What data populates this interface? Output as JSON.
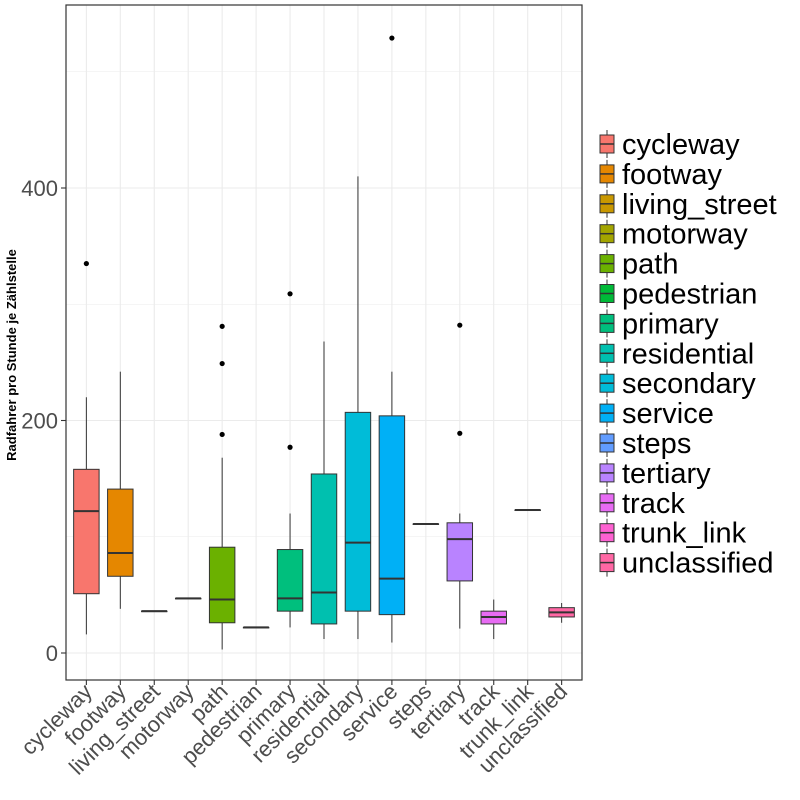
{
  "chart_data": {
    "type": "boxplot",
    "ylabel": "Radfahrer pro Stunde je Zählstelle",
    "xlabel": "",
    "ylim": [
      -22,
      555
    ],
    "yticks": [
      0,
      200,
      400
    ],
    "grid": true,
    "legend_position": "right",
    "categories": [
      "cycleway",
      "footway",
      "living_street",
      "motorway",
      "path",
      "pedestrian",
      "primary",
      "residential",
      "secondary",
      "service",
      "steps",
      "tertiary",
      "track",
      "trunk_link",
      "unclassified"
    ],
    "series": [
      {
        "name": "cycleway",
        "color": "#F8766D",
        "min": 16,
        "q1": 51,
        "median": 122,
        "q3": 158,
        "max": 220,
        "outliers": [
          335
        ]
      },
      {
        "name": "footway",
        "color": "#E58700",
        "min": 38,
        "q1": 66,
        "median": 86,
        "q3": 141,
        "max": 242,
        "outliers": []
      },
      {
        "name": "living_street",
        "color": "#C99800",
        "min": 36,
        "q1": 36,
        "median": 36,
        "q3": 36,
        "max": 36,
        "outliers": []
      },
      {
        "name": "motorway",
        "color": "#A3A500",
        "min": 47,
        "q1": 47,
        "median": 47,
        "q3": 47,
        "max": 47,
        "outliers": []
      },
      {
        "name": "path",
        "color": "#6BB100",
        "min": 3,
        "q1": 26,
        "median": 46,
        "q3": 91,
        "max": 168,
        "outliers": [
          188,
          249,
          281
        ]
      },
      {
        "name": "pedestrian",
        "color": "#00BA38",
        "min": 22,
        "q1": 22,
        "median": 22,
        "q3": 22,
        "max": 22,
        "outliers": []
      },
      {
        "name": "primary",
        "color": "#00BF7D",
        "min": 22,
        "q1": 36,
        "median": 47,
        "q3": 89,
        "max": 120,
        "outliers": [
          177,
          309
        ]
      },
      {
        "name": "residential",
        "color": "#00C0AF",
        "min": 12,
        "q1": 25,
        "median": 52,
        "q3": 154,
        "max": 268,
        "outliers": []
      },
      {
        "name": "secondary",
        "color": "#00BCD8",
        "min": 12,
        "q1": 36,
        "median": 95,
        "q3": 207,
        "max": 410,
        "outliers": []
      },
      {
        "name": "service",
        "color": "#00B0F6",
        "min": 9,
        "q1": 33,
        "median": 64,
        "q3": 204,
        "max": 242,
        "outliers": [
          529
        ]
      },
      {
        "name": "steps",
        "color": "#619CFF",
        "min": 111,
        "q1": 111,
        "median": 111,
        "q3": 111,
        "max": 111,
        "outliers": []
      },
      {
        "name": "tertiary",
        "color": "#B983FF",
        "min": 21,
        "q1": 62,
        "median": 98,
        "q3": 112,
        "max": 120,
        "outliers": [
          189,
          282
        ]
      },
      {
        "name": "track",
        "color": "#E76BF3",
        "min": 12,
        "q1": 25,
        "median": 31,
        "q3": 36,
        "max": 46,
        "outliers": []
      },
      {
        "name": "trunk_link",
        "color": "#FD61D1",
        "min": 123,
        "q1": 123,
        "median": 123,
        "q3": 123,
        "max": 123,
        "outliers": []
      },
      {
        "name": "unclassified",
        "color": "#FF67A4",
        "min": 26,
        "q1": 31,
        "median": 35,
        "q3": 39,
        "max": 43,
        "outliers": []
      }
    ]
  }
}
